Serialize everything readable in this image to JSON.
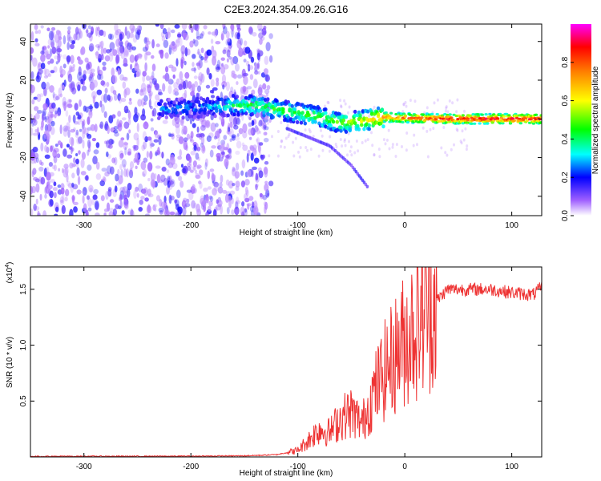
{
  "title": "C2E3.2024.354.09.26.G16",
  "chart_data": [
    {
      "type": "heatmap",
      "xlabel": "Height of straight line (km)",
      "ylabel": "Frequency (Hz)",
      "xlim": [
        -350,
        128
      ],
      "ylim": [
        -50,
        49
      ],
      "xticks": [
        -300,
        -200,
        -100,
        0,
        100
      ],
      "yticks": [
        -40,
        -20,
        0,
        20,
        40
      ],
      "colorbar": {
        "label": "Normalized spectral amplitude",
        "range": [
          0,
          1
        ],
        "ticks": [
          "0.0",
          "0.2",
          "0.4",
          "0.6",
          "0.8"
        ],
        "colors": [
          "#ffffff",
          "#8000ff",
          "#0000ff",
          "#00ffff",
          "#00ff00",
          "#ffff00",
          "#ff8000",
          "#ff0000",
          "#ff00ff"
        ]
      },
      "features": {
        "noise_region_x": [
          -350,
          -125
        ],
        "signal_track": [
          {
            "x": -230,
            "f": 5,
            "amp": 0.25
          },
          {
            "x": -180,
            "f": 6,
            "amp": 0.28
          },
          {
            "x": -160,
            "f": 7,
            "amp": 0.4
          },
          {
            "x": -140,
            "f": 7,
            "amp": 0.45
          },
          {
            "x": -120,
            "f": 5,
            "amp": 0.45
          },
          {
            "x": -100,
            "f": 3,
            "amp": 0.45
          },
          {
            "x": -80,
            "f": 1,
            "amp": 0.5
          },
          {
            "x": -60,
            "f": -2,
            "amp": 0.5
          },
          {
            "x": -40,
            "f": -1,
            "amp": 0.6
          },
          {
            "x": -20,
            "f": 1,
            "amp": 0.75
          },
          {
            "x": 0,
            "f": 0.5,
            "amp": 0.8
          },
          {
            "x": 40,
            "f": 0,
            "amp": 0.9
          },
          {
            "x": 80,
            "f": 0,
            "amp": 0.9
          },
          {
            "x": 128,
            "f": 0,
            "amp": 0.9
          }
        ],
        "descending_branch": [
          {
            "x": -110,
            "f": -5
          },
          {
            "x": -70,
            "f": -14
          },
          {
            "x": -50,
            "f": -24
          },
          {
            "x": -35,
            "f": -35
          }
        ]
      }
    },
    {
      "type": "line",
      "xlabel": "Height of straight line (km)",
      "ylabel": "SNR (10 * v/v)",
      "yscale_note": "(x10",
      "yscale_exp": "4",
      "yscale_close": ")",
      "xlim": [
        -350,
        128
      ],
      "ylim": [
        0,
        1.7
      ],
      "xticks": [
        -300,
        -200,
        -100,
        0,
        100
      ],
      "yticks": [
        0.5,
        1.0,
        1.5
      ],
      "ytick_labels": [
        "0.5",
        "1.0",
        "1.5"
      ],
      "color": "#ee3333",
      "series": [
        {
          "x": [
            -350,
            -300,
            -250,
            -200,
            -150,
            -120,
            -100,
            -90,
            -80,
            -70,
            -60,
            -50,
            -40,
            -30,
            -20,
            -10,
            0,
            10,
            20,
            30,
            40,
            60,
            80,
            100,
            120,
            128
          ],
          "y": [
            0.005,
            0.006,
            0.006,
            0.007,
            0.01,
            0.02,
            0.06,
            0.15,
            0.25,
            0.22,
            0.35,
            0.4,
            0.3,
            0.55,
            0.75,
            0.9,
            1.05,
            1.2,
            1.35,
            1.4,
            1.5,
            1.5,
            1.5,
            1.47,
            1.45,
            1.52
          ]
        }
      ]
    }
  ]
}
